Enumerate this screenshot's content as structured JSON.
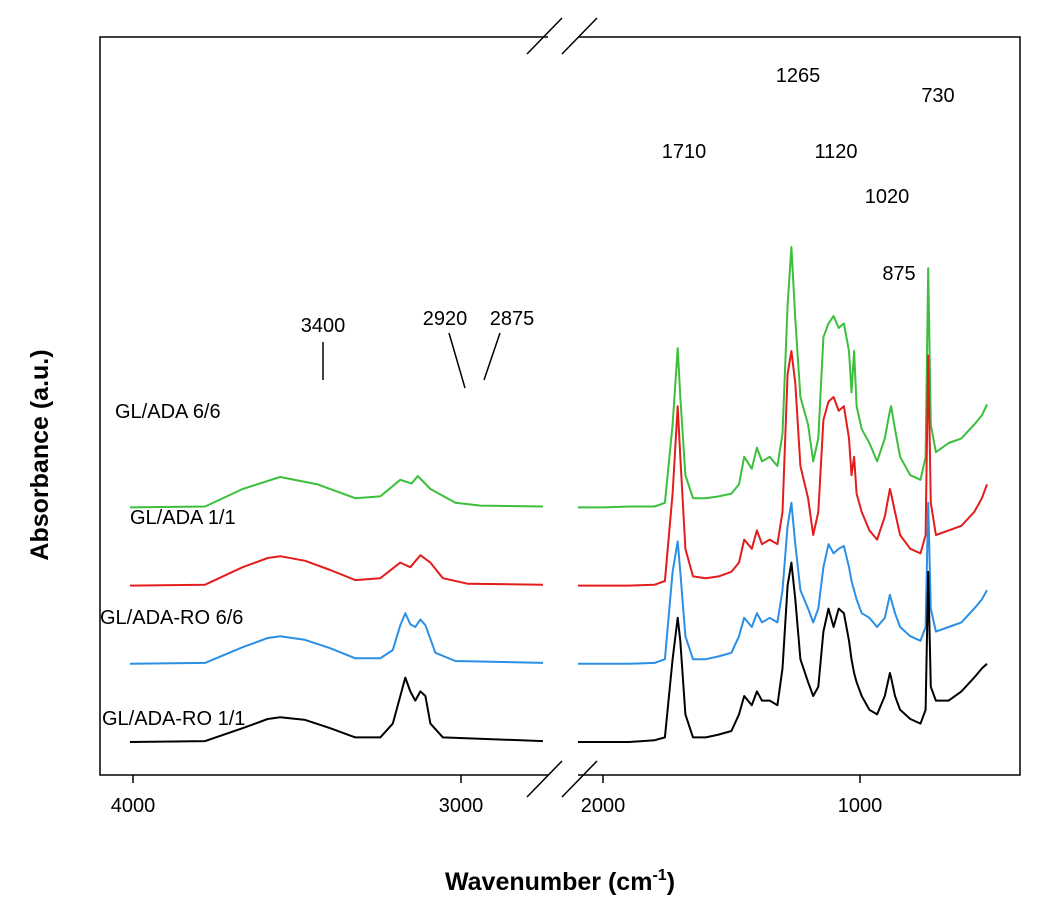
{
  "chart_data": {
    "type": "line",
    "xlabel": "Wavenumber (cm",
    "xlabel_sup": "-1",
    "xlabel_end": ")",
    "ylabel": "Absorbance (a.u.)",
    "x_reversed": true,
    "x_break": [
      2350,
      2100
    ],
    "segments": [
      [
        4000,
        2350
      ],
      [
        2100,
        500
      ]
    ],
    "xlim": [
      4000,
      500
    ],
    "x_ticks": [
      {
        "value": 4000,
        "label": "4000"
      },
      {
        "value": 3000,
        "label": "3000"
      },
      {
        "value": 2000,
        "label": "2000"
      },
      {
        "value": 1000,
        "label": "1000"
      }
    ],
    "colors": {
      "green": "#3cbf3c",
      "red": "#e31c1c",
      "blue": "#2b8fe6",
      "black": "#000000"
    },
    "peak_labels": [
      {
        "text": "3400",
        "x": 3400
      },
      {
        "text": "2920",
        "x": 2920
      },
      {
        "text": "2875",
        "x": 2875
      },
      {
        "text": "1710",
        "x": 1710
      },
      {
        "text": "1265",
        "x": 1265
      },
      {
        "text": "1120",
        "x": 1120
      },
      {
        "text": "1020",
        "x": 1020
      },
      {
        "text": "875",
        "x": 875
      },
      {
        "text": "730",
        "x": 730
      }
    ],
    "series": [
      {
        "name": "GL/ADA 6/6",
        "color": "#3cbf3c",
        "baseline": 2.55,
        "left": [
          [
            4000,
            0
          ],
          [
            3700,
            0.01
          ],
          [
            3550,
            0.2
          ],
          [
            3400,
            0.33
          ],
          [
            3250,
            0.25
          ],
          [
            3100,
            0.1
          ],
          [
            3000,
            0.12
          ],
          [
            2920,
            0.3
          ],
          [
            2875,
            0.26
          ],
          [
            2850,
            0.34
          ],
          [
            2800,
            0.2
          ],
          [
            2700,
            0.05
          ],
          [
            2600,
            0.02
          ],
          [
            2350,
            0.01
          ]
        ],
        "right": [
          [
            2100,
            0
          ],
          [
            2000,
            0
          ],
          [
            1900,
            0.01
          ],
          [
            1800,
            0.01
          ],
          [
            1760,
            0.05
          ],
          [
            1730,
            0.9
          ],
          [
            1710,
            1.73
          ],
          [
            1700,
            1.2
          ],
          [
            1680,
            0.35
          ],
          [
            1650,
            0.1
          ],
          [
            1600,
            0.1
          ],
          [
            1550,
            0.12
          ],
          [
            1500,
            0.15
          ],
          [
            1470,
            0.25
          ],
          [
            1450,
            0.55
          ],
          [
            1420,
            0.42
          ],
          [
            1400,
            0.65
          ],
          [
            1380,
            0.5
          ],
          [
            1350,
            0.55
          ],
          [
            1320,
            0.45
          ],
          [
            1300,
            0.8
          ],
          [
            1280,
            2.2
          ],
          [
            1265,
            2.83
          ],
          [
            1250,
            2.05
          ],
          [
            1230,
            1.2
          ],
          [
            1200,
            0.9
          ],
          [
            1180,
            0.5
          ],
          [
            1160,
            0.75
          ],
          [
            1140,
            1.85
          ],
          [
            1120,
            2.0
          ],
          [
            1100,
            2.08
          ],
          [
            1080,
            1.95
          ],
          [
            1060,
            2.0
          ],
          [
            1040,
            1.7
          ],
          [
            1030,
            1.25
          ],
          [
            1020,
            1.7
          ],
          [
            1010,
            1.1
          ],
          [
            990,
            0.85
          ],
          [
            960,
            0.7
          ],
          [
            930,
            0.5
          ],
          [
            900,
            0.75
          ],
          [
            880,
            1.05
          ],
          [
            875,
            1.1
          ],
          [
            860,
            0.85
          ],
          [
            840,
            0.55
          ],
          [
            800,
            0.35
          ],
          [
            760,
            0.3
          ],
          [
            740,
            0.55
          ],
          [
            730,
            2.6
          ],
          [
            720,
            0.9
          ],
          [
            700,
            0.6
          ],
          [
            650,
            0.7
          ],
          [
            600,
            0.75
          ],
          [
            550,
            0.9
          ],
          [
            520,
            1.0
          ],
          [
            500,
            1.12
          ]
        ]
      },
      {
        "name": "GL/ADA 1/1",
        "color": "#e31c1c",
        "baseline": 1.7,
        "left": [
          [
            4000,
            0
          ],
          [
            3700,
            0.01
          ],
          [
            3550,
            0.2
          ],
          [
            3450,
            0.3
          ],
          [
            3400,
            0.32
          ],
          [
            3300,
            0.27
          ],
          [
            3200,
            0.17
          ],
          [
            3100,
            0.06
          ],
          [
            3000,
            0.08
          ],
          [
            2920,
            0.25
          ],
          [
            2880,
            0.2
          ],
          [
            2840,
            0.33
          ],
          [
            2800,
            0.25
          ],
          [
            2750,
            0.08
          ],
          [
            2650,
            0.02
          ],
          [
            2350,
            0.01
          ]
        ],
        "right": [
          [
            2100,
            0
          ],
          [
            2000,
            0
          ],
          [
            1900,
            0
          ],
          [
            1800,
            0.01
          ],
          [
            1760,
            0.05
          ],
          [
            1730,
            1.0
          ],
          [
            1710,
            1.95
          ],
          [
            1700,
            1.4
          ],
          [
            1680,
            0.4
          ],
          [
            1650,
            0.1
          ],
          [
            1600,
            0.08
          ],
          [
            1550,
            0.1
          ],
          [
            1500,
            0.15
          ],
          [
            1470,
            0.25
          ],
          [
            1450,
            0.5
          ],
          [
            1420,
            0.4
          ],
          [
            1400,
            0.6
          ],
          [
            1380,
            0.45
          ],
          [
            1350,
            0.5
          ],
          [
            1320,
            0.45
          ],
          [
            1300,
            0.8
          ],
          [
            1280,
            2.3
          ],
          [
            1265,
            2.55
          ],
          [
            1250,
            2.2
          ],
          [
            1230,
            1.3
          ],
          [
            1200,
            0.95
          ],
          [
            1180,
            0.55
          ],
          [
            1160,
            0.8
          ],
          [
            1140,
            1.8
          ],
          [
            1120,
            2.0
          ],
          [
            1100,
            2.05
          ],
          [
            1080,
            1.9
          ],
          [
            1060,
            1.95
          ],
          [
            1040,
            1.6
          ],
          [
            1030,
            1.2
          ],
          [
            1020,
            1.4
          ],
          [
            1010,
            1.0
          ],
          [
            990,
            0.8
          ],
          [
            960,
            0.6
          ],
          [
            930,
            0.5
          ],
          [
            900,
            0.75
          ],
          [
            880,
            1.05
          ],
          [
            875,
            1.0
          ],
          [
            860,
            0.8
          ],
          [
            840,
            0.55
          ],
          [
            800,
            0.4
          ],
          [
            760,
            0.35
          ],
          [
            740,
            0.55
          ],
          [
            730,
            2.5
          ],
          [
            720,
            0.9
          ],
          [
            700,
            0.55
          ],
          [
            650,
            0.6
          ],
          [
            600,
            0.65
          ],
          [
            550,
            0.8
          ],
          [
            520,
            0.95
          ],
          [
            500,
            1.1
          ]
        ]
      },
      {
        "name": "GL/ADA-RO 6/6",
        "color": "#2b8fe6",
        "baseline": 0.85,
        "left": [
          [
            4000,
            0
          ],
          [
            3700,
            0.01
          ],
          [
            3550,
            0.18
          ],
          [
            3450,
            0.28
          ],
          [
            3400,
            0.3
          ],
          [
            3300,
            0.26
          ],
          [
            3200,
            0.17
          ],
          [
            3100,
            0.06
          ],
          [
            3000,
            0.06
          ],
          [
            2950,
            0.15
          ],
          [
            2920,
            0.42
          ],
          [
            2900,
            0.55
          ],
          [
            2880,
            0.43
          ],
          [
            2860,
            0.4
          ],
          [
            2840,
            0.48
          ],
          [
            2820,
            0.42
          ],
          [
            2780,
            0.12
          ],
          [
            2700,
            0.03
          ],
          [
            2350,
            0.01
          ]
        ],
        "right": [
          [
            2100,
            0
          ],
          [
            2000,
            0
          ],
          [
            1900,
            0
          ],
          [
            1800,
            0.01
          ],
          [
            1760,
            0.05
          ],
          [
            1730,
            1.0
          ],
          [
            1710,
            1.33
          ],
          [
            1700,
            1.0
          ],
          [
            1680,
            0.3
          ],
          [
            1650,
            0.05
          ],
          [
            1600,
            0.05
          ],
          [
            1550,
            0.08
          ],
          [
            1500,
            0.12
          ],
          [
            1470,
            0.3
          ],
          [
            1450,
            0.5
          ],
          [
            1420,
            0.4
          ],
          [
            1400,
            0.55
          ],
          [
            1380,
            0.45
          ],
          [
            1350,
            0.5
          ],
          [
            1320,
            0.45
          ],
          [
            1300,
            0.8
          ],
          [
            1280,
            1.5
          ],
          [
            1265,
            1.75
          ],
          [
            1250,
            1.3
          ],
          [
            1230,
            0.8
          ],
          [
            1200,
            0.6
          ],
          [
            1180,
            0.45
          ],
          [
            1160,
            0.6
          ],
          [
            1140,
            1.05
          ],
          [
            1120,
            1.3
          ],
          [
            1100,
            1.2
          ],
          [
            1080,
            1.25
          ],
          [
            1060,
            1.28
          ],
          [
            1040,
            1.05
          ],
          [
            1030,
            0.9
          ],
          [
            1020,
            0.8
          ],
          [
            1010,
            0.7
          ],
          [
            990,
            0.55
          ],
          [
            960,
            0.5
          ],
          [
            930,
            0.4
          ],
          [
            900,
            0.5
          ],
          [
            880,
            0.75
          ],
          [
            875,
            0.7
          ],
          [
            860,
            0.55
          ],
          [
            840,
            0.4
          ],
          [
            800,
            0.3
          ],
          [
            760,
            0.25
          ],
          [
            740,
            0.4
          ],
          [
            730,
            1.75
          ],
          [
            720,
            0.6
          ],
          [
            700,
            0.35
          ],
          [
            650,
            0.4
          ],
          [
            600,
            0.45
          ],
          [
            550,
            0.6
          ],
          [
            520,
            0.7
          ],
          [
            500,
            0.8
          ]
        ]
      },
      {
        "name": "GL/ADA-RO 1/1",
        "color": "#000000",
        "baseline": 0,
        "left": [
          [
            4000,
            0
          ],
          [
            3700,
            0.01
          ],
          [
            3550,
            0.15
          ],
          [
            3450,
            0.25
          ],
          [
            3400,
            0.27
          ],
          [
            3300,
            0.24
          ],
          [
            3200,
            0.15
          ],
          [
            3100,
            0.05
          ],
          [
            3000,
            0.05
          ],
          [
            2950,
            0.2
          ],
          [
            2920,
            0.5
          ],
          [
            2900,
            0.7
          ],
          [
            2880,
            0.55
          ],
          [
            2860,
            0.45
          ],
          [
            2840,
            0.55
          ],
          [
            2820,
            0.5
          ],
          [
            2800,
            0.2
          ],
          [
            2750,
            0.05
          ],
          [
            2350,
            0.01
          ]
        ],
        "right": [
          [
            2100,
            0
          ],
          [
            2000,
            0
          ],
          [
            1900,
            0
          ],
          [
            1800,
            0.02
          ],
          [
            1760,
            0.05
          ],
          [
            1730,
            0.9
          ],
          [
            1710,
            1.35
          ],
          [
            1700,
            1.1
          ],
          [
            1680,
            0.3
          ],
          [
            1650,
            0.05
          ],
          [
            1600,
            0.05
          ],
          [
            1550,
            0.08
          ],
          [
            1500,
            0.12
          ],
          [
            1470,
            0.3
          ],
          [
            1450,
            0.5
          ],
          [
            1420,
            0.4
          ],
          [
            1400,
            0.55
          ],
          [
            1380,
            0.45
          ],
          [
            1350,
            0.45
          ],
          [
            1320,
            0.4
          ],
          [
            1300,
            0.8
          ],
          [
            1280,
            1.7
          ],
          [
            1265,
            1.95
          ],
          [
            1250,
            1.55
          ],
          [
            1230,
            0.9
          ],
          [
            1200,
            0.65
          ],
          [
            1180,
            0.5
          ],
          [
            1160,
            0.6
          ],
          [
            1140,
            1.2
          ],
          [
            1120,
            1.45
          ],
          [
            1100,
            1.25
          ],
          [
            1080,
            1.45
          ],
          [
            1060,
            1.4
          ],
          [
            1040,
            1.1
          ],
          [
            1030,
            0.9
          ],
          [
            1020,
            0.75
          ],
          [
            1010,
            0.65
          ],
          [
            990,
            0.5
          ],
          [
            960,
            0.35
          ],
          [
            930,
            0.3
          ],
          [
            900,
            0.5
          ],
          [
            880,
            0.75
          ],
          [
            875,
            0.7
          ],
          [
            860,
            0.5
          ],
          [
            840,
            0.35
          ],
          [
            800,
            0.25
          ],
          [
            760,
            0.2
          ],
          [
            740,
            0.35
          ],
          [
            730,
            1.85
          ],
          [
            720,
            0.6
          ],
          [
            700,
            0.45
          ],
          [
            650,
            0.45
          ],
          [
            600,
            0.55
          ],
          [
            550,
            0.7
          ],
          [
            520,
            0.8
          ],
          [
            500,
            0.85
          ]
        ]
      }
    ]
  }
}
